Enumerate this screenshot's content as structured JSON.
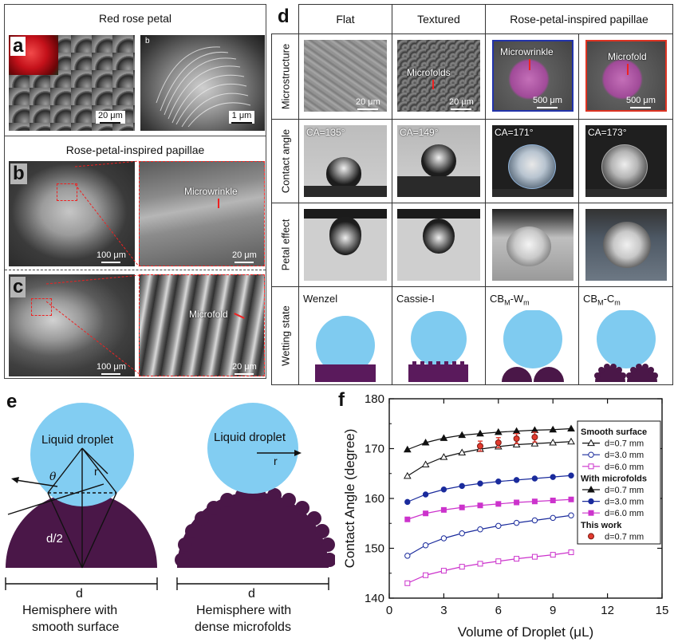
{
  "panel_a": {
    "title": "Red rose petal",
    "letter": "a",
    "inset_letter": "b",
    "scale1": "20 μm",
    "scale2": "1 μm"
  },
  "panel_b": {
    "title": "Rose-petal-inspired papillae",
    "letter": "b",
    "scale1": "100 μm",
    "scale2": "20 μm",
    "label": "Microwrinkle"
  },
  "panel_c": {
    "letter": "c",
    "scale1": "100 μm",
    "scale2": "20 μm",
    "label": "Microfold"
  },
  "panel_d": {
    "letter": "d",
    "columns": [
      "Flat",
      "Textured",
      "Rose-petal-inspired papillae"
    ],
    "rows": [
      "Microstructure",
      "Contact angle",
      "Petal effect",
      "Wetting state"
    ],
    "micro": {
      "scale_flat": "20 μm",
      "scale_tex": "20 μm",
      "tex_label": "Microfolds",
      "pap1_label": "Microwrinkle",
      "pap1_scale": "500 μm",
      "pap2_label": "Microfold",
      "pap2_scale": "500 μm"
    },
    "contact_angles": [
      "CA=135°",
      "CA=149°",
      "CA=171°",
      "CA=173°"
    ],
    "wetting": {
      "w1": "Wenzel",
      "w2": "Cassie-I",
      "w3_base": "CB",
      "w3_sub1": "M",
      "w3_mid": "-W",
      "w3_sub2": "m",
      "w4_base": "CB",
      "w4_sub1": "M",
      "w4_mid": "-C",
      "w4_sub2": "m"
    }
  },
  "panel_e": {
    "letter": "e",
    "left": {
      "droplet": "Liquid droplet",
      "theta": "θ",
      "r": "r",
      "half_d": "d/2",
      "d": "d",
      "caption1": "Hemisphere with",
      "caption2": "smooth surface"
    },
    "right": {
      "droplet": "Liquid droplet",
      "r": "r",
      "d": "d",
      "caption1": "Hemisphere with",
      "caption2": "dense microfolds"
    }
  },
  "panel_f": {
    "letter": "f"
  },
  "chart_data": {
    "type": "line",
    "xlabel": "Volume of Droplet (μL)",
    "ylabel": "Contact Angle (degree)",
    "xlim": [
      0,
      15
    ],
    "ylim": [
      140,
      180
    ],
    "xticks": [
      "0",
      "3",
      "6",
      "9",
      "12",
      "15"
    ],
    "yticks": [
      "140",
      "150",
      "160",
      "170",
      "180"
    ],
    "legend_position": "right",
    "legend": {
      "group1": "Smooth surface",
      "group2": "With microfolds",
      "group3": "This work",
      "items": [
        "d=0.7 mm",
        "d=3.0 mm",
        "d=6.0 mm",
        "d=0.7 mm",
        "d=3.0 mm",
        "d=6.0 mm",
        "d=0.7 mm"
      ]
    },
    "x": [
      1,
      2,
      3,
      4,
      5,
      6,
      7,
      8,
      9,
      10
    ],
    "series": [
      {
        "name": "Smooth d=0.7 mm",
        "marker": "open-triangle",
        "color": "#111111",
        "values": [
          164.5,
          166.8,
          168.3,
          169.2,
          169.9,
          170.4,
          170.8,
          171.0,
          171.2,
          171.4
        ]
      },
      {
        "name": "Smooth d=3.0 mm",
        "marker": "open-circle",
        "color": "#1a2b9c",
        "values": [
          148.5,
          150.6,
          152.0,
          153.0,
          153.8,
          154.5,
          155.1,
          155.6,
          156.1,
          156.6
        ]
      },
      {
        "name": "Smooth d=6.0 mm",
        "marker": "open-square",
        "color": "#cc33cc",
        "values": [
          143.0,
          144.6,
          145.5,
          146.3,
          146.9,
          147.4,
          147.9,
          148.3,
          148.7,
          149.2
        ]
      },
      {
        "name": "Microfolds d=0.7 mm",
        "marker": "filled-triangle",
        "color": "#111111",
        "values": [
          169.8,
          171.2,
          172.1,
          172.7,
          173.0,
          173.3,
          173.5,
          173.7,
          173.8,
          174.0
        ]
      },
      {
        "name": "Microfolds d=3.0 mm",
        "marker": "filled-circle",
        "color": "#1a2b9c",
        "values": [
          159.3,
          160.8,
          161.8,
          162.5,
          163.0,
          163.4,
          163.7,
          164.0,
          164.3,
          164.6
        ]
      },
      {
        "name": "Microfolds d=6.0 mm",
        "marker": "filled-square",
        "color": "#cc33cc",
        "values": [
          155.8,
          157.0,
          157.7,
          158.2,
          158.6,
          158.9,
          159.2,
          159.4,
          159.6,
          159.8
        ]
      }
    ],
    "this_work": {
      "x": [
        5,
        6,
        7,
        8
      ],
      "values": [
        170.5,
        171.2,
        172.0,
        172.3
      ],
      "error": [
        1.0,
        1.0,
        1.0,
        1.0
      ],
      "color": "#e23a2e"
    }
  }
}
